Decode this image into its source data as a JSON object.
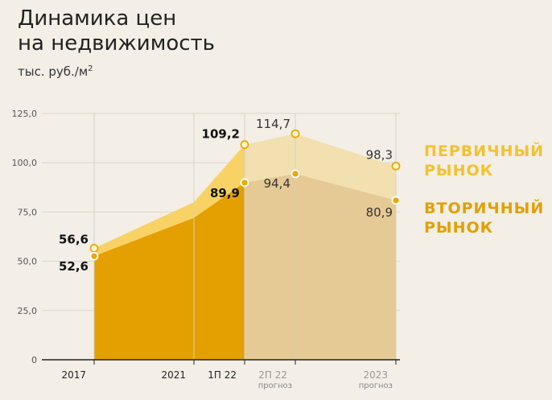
{
  "header": {
    "title_line1": "Динамика цен",
    "title_line2": "на недвижимость",
    "units": "тыс. руб./м",
    "units_sup": "2"
  },
  "legend": {
    "primary_line1": "ПЕРВИЧНЫЙ",
    "primary_line2": "РЫНОК",
    "secondary_line1": "ВТОРИЧНЫЙ",
    "secondary_line2": "РЫНОК"
  },
  "colors": {
    "primary_actual": "#f9d266",
    "secondary_actual": "#e3a000",
    "primary_forecast": "#f2e0b0",
    "secondary_forecast": "#e6ca95",
    "marker": "#e9a800"
  },
  "chart_data": {
    "type": "area",
    "ylim": [
      0,
      125
    ],
    "yticks": [
      "0",
      "25,0",
      "50,0",
      "75,0",
      "100,0",
      "125,0"
    ],
    "x": [
      "2017",
      "2021",
      "1П 22",
      "2П 22",
      "2023"
    ],
    "x_sublabels": [
      "",
      "",
      "",
      "прогноз",
      "прогноз"
    ],
    "forecast_from_index": 2,
    "series": [
      {
        "name": "ПЕРВИЧНЫЙ РЫНОК",
        "values": [
          56.6,
          80.0,
          109.2,
          114.7,
          98.3
        ],
        "labels": [
          "56,6",
          "",
          "109,2",
          "114,7",
          "98,3"
        ]
      },
      {
        "name": "ВТОРИЧНЫЙ РЫНОК",
        "values": [
          52.6,
          72.0,
          89.9,
          94.4,
          80.9
        ],
        "labels": [
          "52,6",
          "",
          "89,9",
          "94,4",
          "80,9"
        ]
      }
    ]
  }
}
